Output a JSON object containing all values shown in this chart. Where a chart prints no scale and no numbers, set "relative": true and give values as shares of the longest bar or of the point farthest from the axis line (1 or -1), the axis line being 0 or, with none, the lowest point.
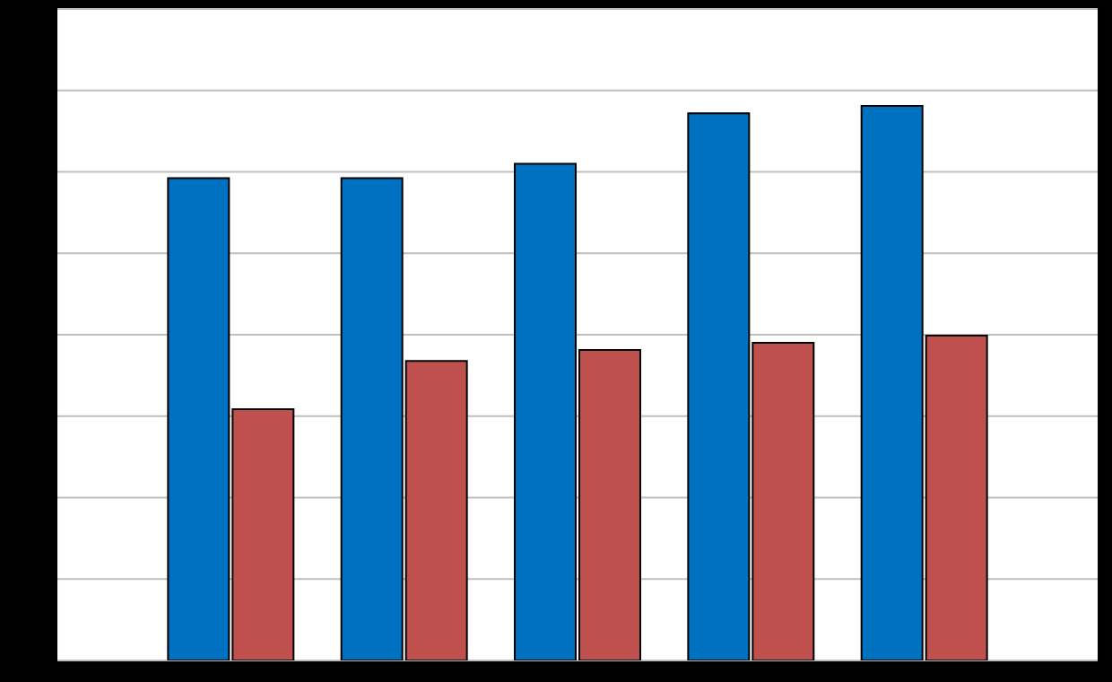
{
  "chart_data": {
    "type": "bar",
    "relative": true,
    "grid": "y",
    "categories": [
      null,
      null,
      null,
      null,
      null
    ],
    "series": [
      {
        "color": "#0070c0",
        "values": [
          0.87,
          0.87,
          0.896,
          0.987,
          1.0
        ]
      },
      {
        "color": "#c0504d",
        "values": [
          0.453,
          0.54,
          0.56,
          0.573,
          0.586
        ]
      }
    ]
  }
}
